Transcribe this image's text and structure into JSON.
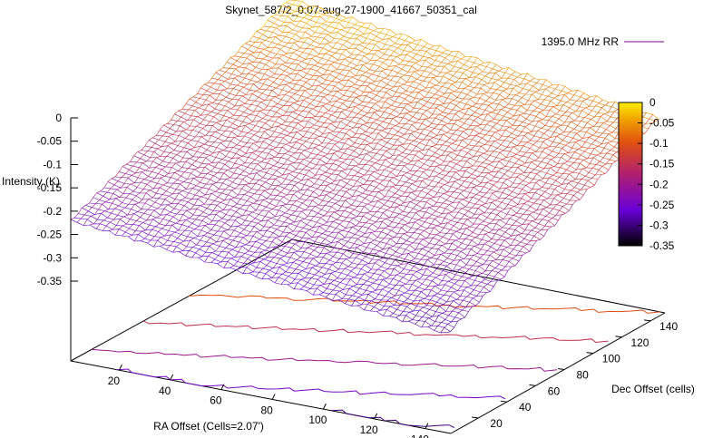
{
  "chart_data": {
    "type": "surface",
    "title": "Skynet_587/2_0:07-aug-27-1900_41667_50351_cal",
    "legend": {
      "label": "1395.0 MHz RR",
      "position": "top-right",
      "line_color": "#8000a0"
    },
    "xlabel": "RA Offset (Cells=2.07')",
    "ylabel": "Dec Offset (cells)",
    "zlabel": "Intensity (K)",
    "x_ticks": [
      20,
      40,
      60,
      80,
      100,
      120,
      140
    ],
    "y_ticks": [
      20,
      40,
      60,
      80,
      100,
      120,
      140
    ],
    "z_ticks": [
      0,
      -0.05,
      -0.1,
      -0.15,
      -0.2,
      -0.25,
      -0.3,
      -0.35
    ],
    "xlim": [
      1,
      150
    ],
    "ylim": [
      1,
      150
    ],
    "zlim": [
      -0.35,
      0
    ],
    "grid": false,
    "surface_corners": [
      {
        "x": 1,
        "y": 1,
        "z": -0.22
      },
      {
        "x": 150,
        "y": 1,
        "z": -0.31
      },
      {
        "x": 150,
        "y": 150,
        "z": -0.1
      },
      {
        "x": 1,
        "y": 150,
        "z": 0.0
      }
    ],
    "contour_levels": [
      -0.3,
      -0.25,
      -0.2,
      -0.15,
      -0.1
    ],
    "colorbar": {
      "ticks": [
        0,
        -0.05,
        -0.1,
        -0.15,
        -0.2,
        -0.25,
        -0.3,
        -0.35
      ],
      "range": [
        -0.35,
        0
      ],
      "colors": [
        "#000000",
        "#6a00d8",
        "#b02070",
        "#e05010",
        "#f0a000",
        "#ffee00"
      ]
    }
  }
}
